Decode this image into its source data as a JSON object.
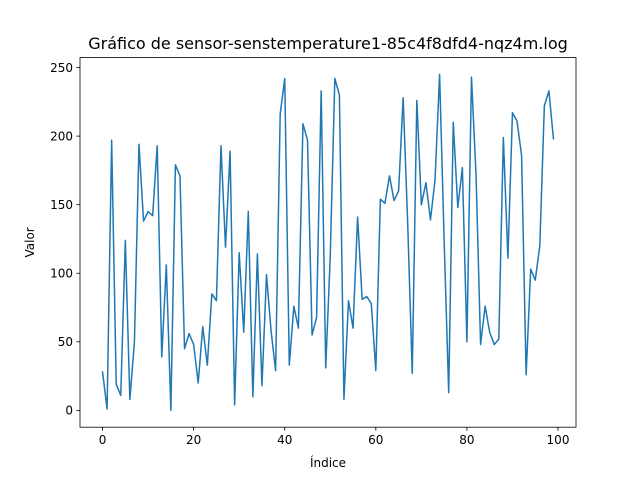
{
  "chart_data": {
    "type": "line",
    "title": "Gráfico de sensor-senstemperature1-85c4f8dfd4-nqz4m.log",
    "xlabel": "Índice",
    "ylabel": "Valor",
    "xlim": [
      -4.95,
      103.95
    ],
    "ylim": [
      -12.25,
      257.25
    ],
    "x_ticks": [
      0,
      20,
      40,
      60,
      80,
      100
    ],
    "y_ticks": [
      0,
      50,
      100,
      150,
      200,
      250
    ],
    "grid": false,
    "legend": "none",
    "series": [
      {
        "color": "#1f77b4",
        "x": [
          0,
          1,
          2,
          3,
          4,
          5,
          6,
          7,
          8,
          9,
          10,
          11,
          12,
          13,
          14,
          15,
          16,
          17,
          18,
          19,
          20,
          21,
          22,
          23,
          24,
          25,
          26,
          27,
          28,
          29,
          30,
          31,
          32,
          33,
          34,
          35,
          36,
          37,
          38,
          39,
          40,
          41,
          42,
          43,
          44,
          45,
          46,
          47,
          48,
          49,
          50,
          51,
          52,
          53,
          54,
          55,
          56,
          57,
          58,
          59,
          60,
          61,
          62,
          63,
          64,
          65,
          66,
          67,
          68,
          69,
          70,
          71,
          72,
          73,
          74,
          75,
          76,
          77,
          78,
          79,
          80,
          81,
          82,
          83,
          84,
          85,
          86,
          87,
          88,
          89,
          90,
          91,
          92,
          93,
          94,
          95,
          96,
          97,
          98,
          99
        ],
        "values": [
          28,
          1,
          197,
          19,
          11,
          124,
          8,
          50,
          194,
          138,
          145,
          142,
          193,
          39,
          106,
          0,
          179,
          171,
          45,
          56,
          48,
          20,
          61,
          33,
          85,
          80,
          193,
          119,
          189,
          4,
          115,
          57,
          145,
          10,
          114,
          18,
          99,
          58,
          29,
          216,
          242,
          33,
          76,
          60,
          209,
          197,
          55,
          68,
          233,
          31,
          113,
          242,
          230,
          8,
          80,
          60,
          141,
          81,
          83,
          78,
          29,
          154,
          151,
          171,
          153,
          160,
          228,
          136,
          27,
          226,
          150,
          166,
          139,
          168,
          245,
          124,
          13,
          210,
          148,
          177,
          50,
          243,
          172,
          48,
          76,
          57,
          48,
          52,
          199,
          111,
          217,
          211,
          186,
          26,
          103,
          95,
          120,
          222,
          233,
          198
        ]
      }
    ]
  }
}
